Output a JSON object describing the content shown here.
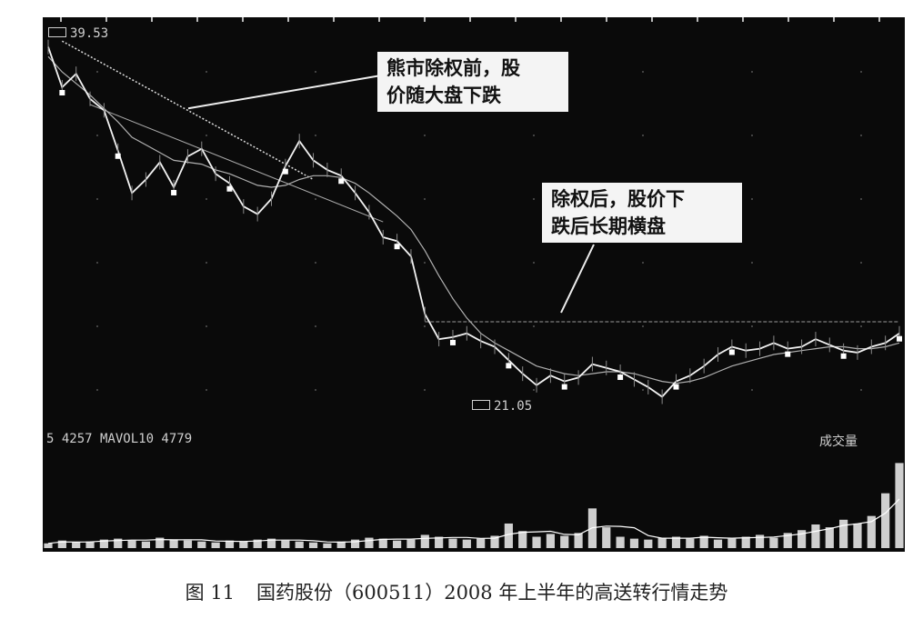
{
  "figure": {
    "figure_number": "图 11",
    "caption": "国药股份（600511）2008 年上半年的高送转行情走势"
  },
  "chart_data": {
    "type": "line",
    "labels": {
      "price_high": "39.53",
      "price_low": "21.05",
      "volume_indicator": "5 4257 MAVOL10 4779",
      "volume_title": "成交量"
    },
    "annotations": [
      {
        "text_line1": "熊市除权前，股",
        "text_line2": "价随大盘下跌"
      },
      {
        "text_line1": "除权后，股价下",
        "text_line2": "跌后长期横盘"
      }
    ],
    "price_range": [
      20,
      40
    ],
    "price": [
      39.5,
      37.4,
      38.1,
      36.8,
      36.2,
      34.1,
      31.9,
      32.6,
      33.5,
      32.2,
      33.8,
      34.2,
      32.9,
      32.4,
      31.2,
      30.8,
      31.6,
      33.3,
      34.6,
      33.6,
      33.1,
      32.8,
      31.9,
      30.9,
      29.6,
      29.4,
      28.6,
      25.6,
      24.3,
      24.4,
      24.6,
      24.2,
      23.9,
      23.2,
      22.5,
      21.9,
      22.4,
      22.1,
      22.3,
      23.0,
      22.8,
      22.6,
      22.2,
      21.8,
      21.3,
      22.1,
      22.4,
      22.9,
      23.5,
      23.9,
      23.7,
      23.8,
      24.1,
      23.8,
      23.9,
      24.3,
      24.0,
      23.7,
      23.6,
      23.9,
      24.1,
      24.6
    ],
    "ma_long": [
      39.0,
      38.2,
      37.6,
      37.0,
      36.3,
      35.6,
      34.8,
      34.4,
      34.0,
      33.6,
      33.5,
      33.4,
      33.1,
      32.9,
      32.6,
      32.3,
      32.2,
      32.3,
      32.6,
      32.8,
      32.8,
      32.7,
      32.4,
      31.9,
      31.3,
      30.7,
      30.0,
      28.9,
      27.6,
      26.4,
      25.4,
      24.6,
      24.1,
      23.7,
      23.3,
      22.9,
      22.7,
      22.5,
      22.4,
      22.5,
      22.6,
      22.6,
      22.5,
      22.3,
      22.1,
      22.0,
      22.1,
      22.3,
      22.6,
      22.9,
      23.1,
      23.3,
      23.5,
      23.6,
      23.7,
      23.8,
      23.9,
      23.9,
      23.8,
      23.8,
      23.9,
      24.1
    ],
    "volume_range": [
      0,
      10
    ],
    "volume": [
      0.5,
      0.8,
      0.6,
      0.7,
      0.9,
      1.0,
      0.8,
      0.7,
      1.1,
      0.9,
      0.8,
      0.7,
      0.6,
      0.8,
      0.7,
      0.9,
      1.0,
      0.8,
      0.7,
      0.6,
      0.5,
      0.7,
      0.9,
      1.1,
      1.0,
      0.8,
      0.9,
      1.4,
      1.2,
      1.0,
      0.9,
      1.0,
      1.3,
      2.6,
      1.8,
      1.2,
      1.5,
      1.3,
      1.6,
      4.2,
      2.2,
      1.2,
      1.0,
      0.9,
      1.1,
      1.2,
      1.0,
      1.3,
      0.9,
      1.0,
      1.2,
      1.4,
      1.1,
      1.6,
      1.9,
      2.5,
      2.2,
      3.0,
      2.6,
      3.4,
      5.8,
      9.0
    ]
  }
}
